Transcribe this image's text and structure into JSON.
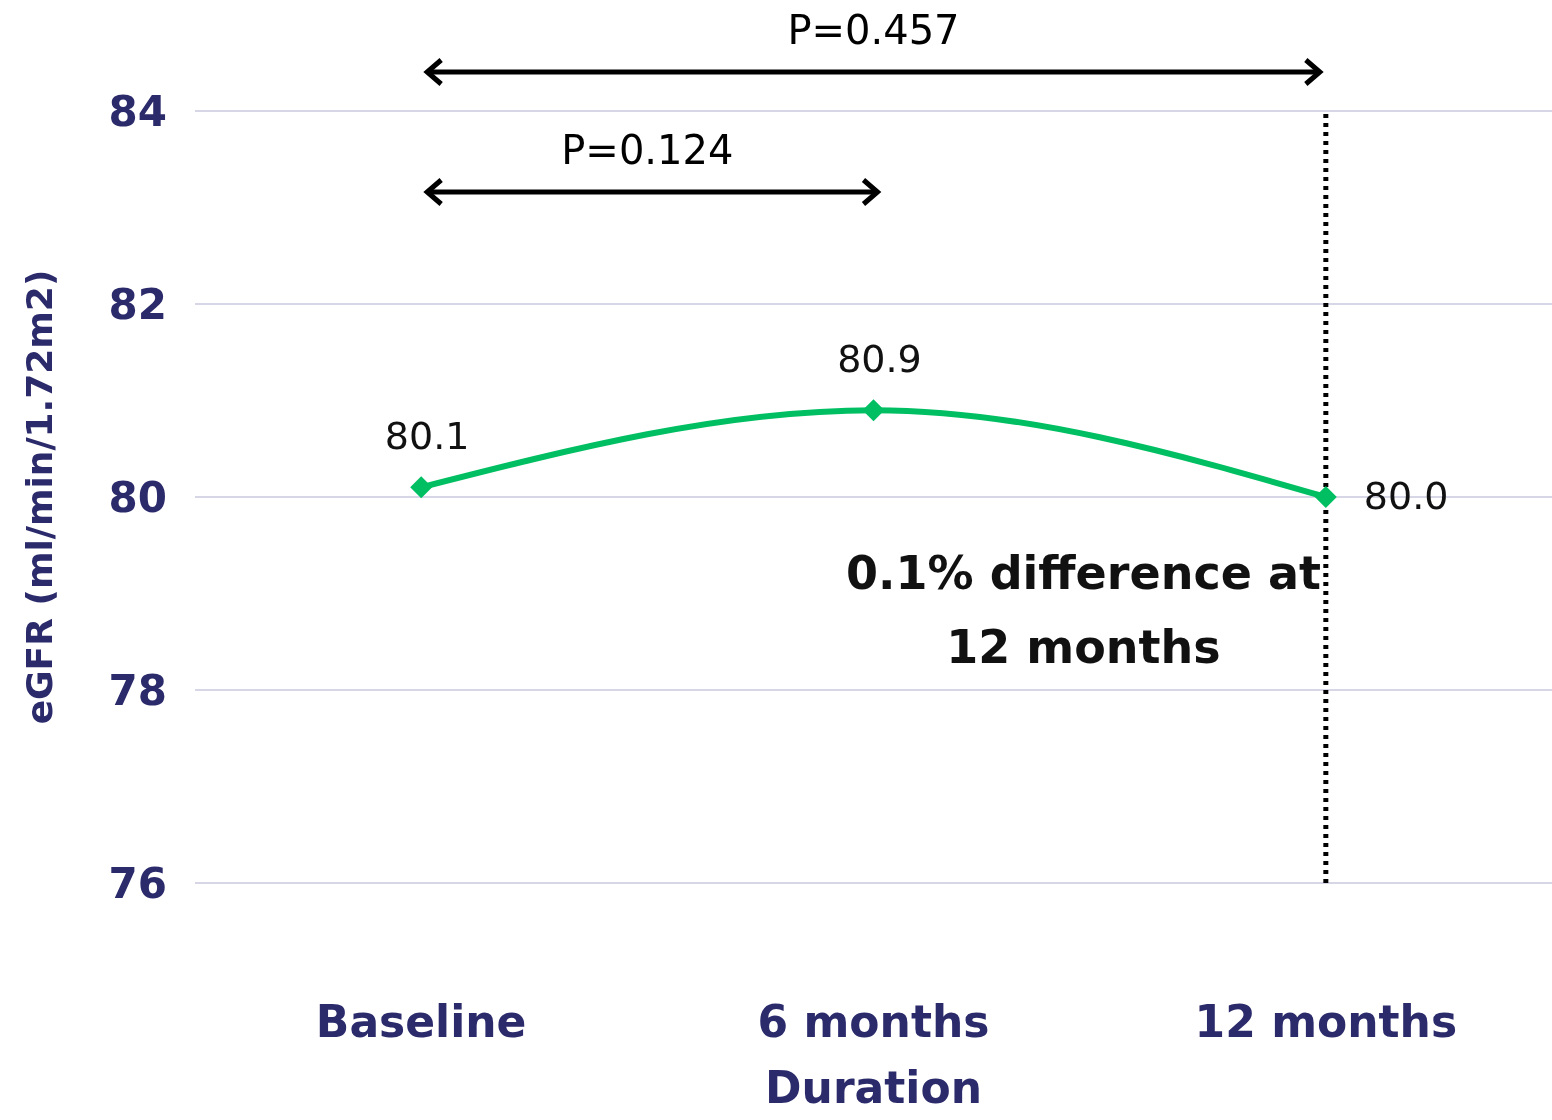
{
  "chart_data": {
    "type": "line",
    "categories": [
      "Baseline",
      "6 months",
      "12 months"
    ],
    "series": [
      {
        "color": "#00bf63",
        "values": [
          80.1,
          80.9,
          80.0
        ],
        "value_labels": [
          "80.1",
          "80.9",
          "80.0"
        ]
      }
    ],
    "ylim": [
      76,
      84
    ],
    "yticks": [
      76,
      78,
      80,
      82,
      84
    ],
    "grid": "y",
    "legend": false,
    "marker": "diamond",
    "line_style": "solid",
    "xlabel": "Duration",
    "ylabel": "eGFR (ml/min/1.72m2)",
    "ref_lines": [
      {
        "axis": "x",
        "value": "12 months",
        "color": "#000000",
        "line_style": "dotted"
      }
    ],
    "annotations": [
      "P=0.457",
      "P=0.124",
      "0.1% difference at 12 months"
    ]
  }
}
